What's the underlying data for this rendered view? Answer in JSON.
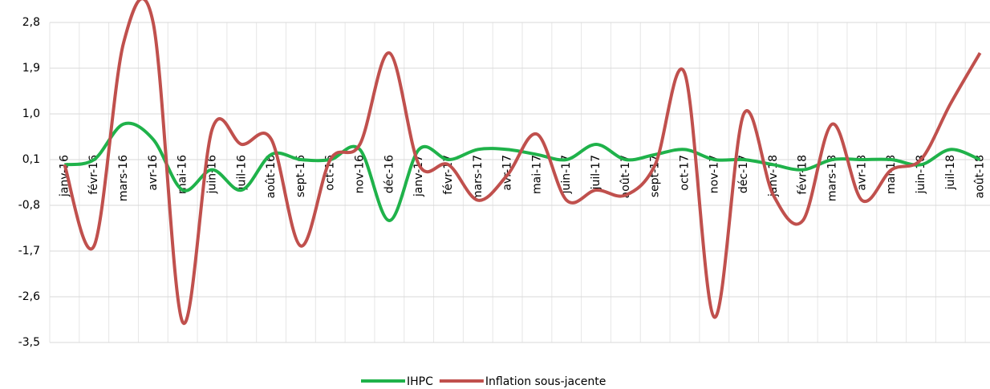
{
  "chart_data": {
    "type": "line",
    "categories": [
      "janv-16",
      "févr-16",
      "mars-16",
      "avr-16",
      "mai-16",
      "juin-16",
      "juil-16",
      "août-16",
      "sept-16",
      "oct-16",
      "nov-16",
      "déc-16",
      "janv-17",
      "févr-17",
      "mars-17",
      "avr-17",
      "mai-17",
      "juin-17",
      "juil-17",
      "août-17",
      "sept-17",
      "oct-17",
      "nov-17",
      "déc-17",
      "janv-18",
      "févr-18",
      "mars-18",
      "avr-18",
      "mai-18",
      "juin-18",
      "juil-18",
      "août-18"
    ],
    "series": [
      {
        "name": "IHPC",
        "color": "#1fb24a",
        "values": [
          0.0,
          0.1,
          0.8,
          0.5,
          -0.5,
          -0.1,
          -0.5,
          0.2,
          0.1,
          0.1,
          0.3,
          -1.1,
          0.3,
          0.1,
          0.3,
          0.3,
          0.2,
          0.1,
          0.4,
          0.1,
          0.2,
          0.3,
          0.1,
          0.1,
          0.0,
          -0.1,
          0.1,
          0.1,
          0.1,
          0.0,
          0.3,
          0.1
        ]
      },
      {
        "name": "Inflation sous-jacente",
        "color": "#c0504d",
        "values": [
          0.0,
          -1.6,
          2.4,
          2.8,
          -3.1,
          0.7,
          0.4,
          0.5,
          -1.6,
          0.1,
          0.4,
          2.2,
          0.0,
          0.0,
          -0.7,
          -0.2,
          0.6,
          -0.7,
          -0.5,
          -0.6,
          0.0,
          1.8,
          -3.0,
          1.0,
          -0.6,
          -1.1,
          0.8,
          -0.7,
          -0.1,
          0.1,
          1.2,
          2.2
        ]
      }
    ],
    "ylim": [
      -3.5,
      2.8
    ],
    "yticks": [
      {
        "value": 2.8,
        "label": "2,8"
      },
      {
        "value": 1.9,
        "label": "1,9"
      },
      {
        "value": 1.0,
        "label": "1,0"
      },
      {
        "value": 0.1,
        "label": "0,1"
      },
      {
        "value": -0.8,
        "label": "-0,8"
      },
      {
        "value": -1.7,
        "label": "-1,7"
      },
      {
        "value": -2.6,
        "label": "-2,6"
      },
      {
        "value": -3.5,
        "label": "-3,5"
      }
    ],
    "grid": true,
    "legend": "bottom"
  }
}
